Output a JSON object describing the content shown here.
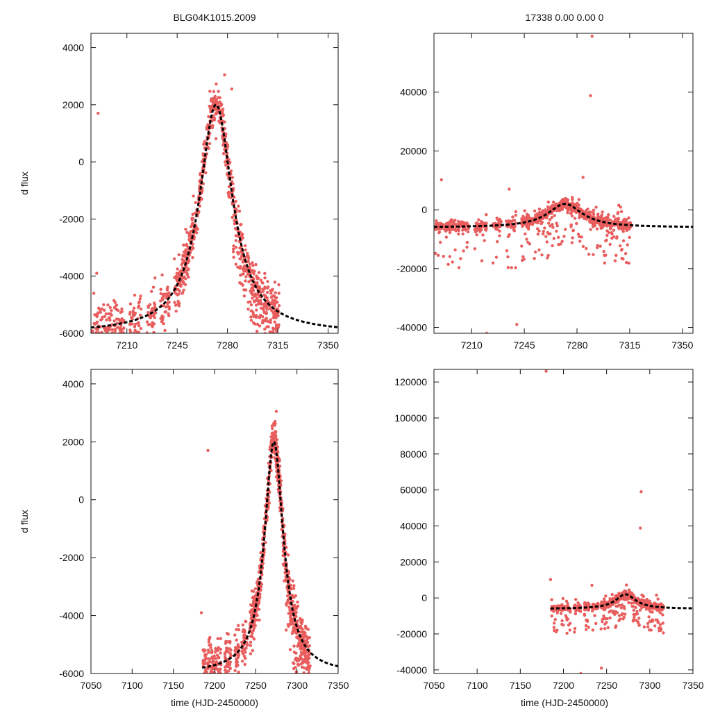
{
  "figure": {
    "title_left": "BLG04K1015.2009",
    "title_right": "17338  0.00  0.00  0",
    "xlabel": "time (HJD-2450000)",
    "ylabel": "d flux"
  },
  "colors": {
    "points": "#e85d5d",
    "model": "#000000",
    "axes": "#111111"
  },
  "model": {
    "t0": 7272,
    "peak": 2000,
    "base": -6000,
    "tE": 14
  },
  "chart_data": [
    {
      "id": "top-left",
      "type": "scatter",
      "xlim": [
        7185,
        7357
      ],
      "ylim": [
        -6000,
        4500
      ],
      "xticks": [
        7210,
        7245,
        7280,
        7315,
        7350
      ],
      "yticks": [
        -6000,
        -4000,
        -2000,
        0,
        2000,
        4000
      ],
      "series": [
        {
          "name": "data",
          "points": [
            [
              7190,
              1700
            ],
            [
              7278,
              3050
            ],
            [
              7283,
              2550
            ],
            [
              7189,
              -3900
            ],
            [
              7187,
              -4600
            ]
          ]
        },
        {
          "name": "model",
          "style": "dashed",
          "function": "paczynski"
        }
      ]
    },
    {
      "id": "top-right",
      "type": "scatter",
      "xlim": [
        7185,
        7357
      ],
      "ylim": [
        -42000,
        60000
      ],
      "xticks": [
        7210,
        7245,
        7280,
        7315,
        7350
      ],
      "yticks": [
        -40000,
        -20000,
        0,
        20000,
        40000
      ],
      "series": [
        {
          "name": "data",
          "points": [
            [
              7290,
              59000
            ],
            [
              7289,
              38800
            ],
            [
              7190,
              10200
            ],
            [
              7284,
              11000
            ],
            [
              7235,
              7000
            ],
            [
              7220,
              -42000
            ],
            [
              7240,
              -39000
            ]
          ]
        },
        {
          "name": "model",
          "style": "dashed",
          "function": "paczynski"
        }
      ]
    },
    {
      "id": "bottom-left",
      "type": "scatter",
      "xlim": [
        7050,
        7350
      ],
      "ylim": [
        -6000,
        4500
      ],
      "xticks": [
        7050,
        7100,
        7150,
        7200,
        7250,
        7300,
        7350
      ],
      "yticks": [
        -6000,
        -4000,
        -2000,
        0,
        2000,
        4000
      ],
      "series": [
        {
          "name": "data",
          "points": [
            [
              7192,
              1700
            ],
            [
              7275,
              3050
            ],
            [
              7184,
              -3900
            ]
          ]
        },
        {
          "name": "model",
          "style": "dashed",
          "function": "paczynski"
        }
      ]
    },
    {
      "id": "bottom-right",
      "type": "scatter",
      "xlim": [
        7050,
        7350
      ],
      "ylim": [
        -42000,
        127000
      ],
      "xticks": [
        7050,
        7100,
        7150,
        7200,
        7250,
        7300,
        7350
      ],
      "yticks": [
        -40000,
        -20000,
        0,
        20000,
        40000,
        60000,
        80000,
        100000,
        120000
      ],
      "series": [
        {
          "name": "data",
          "points": [
            [
              7180,
              126000
            ],
            [
              7290,
              59000
            ],
            [
              7289,
              38800
            ],
            [
              7185,
              10200
            ],
            [
              7233,
              7000
            ],
            [
              7220,
              -42000
            ],
            [
              7244,
              -39000
            ]
          ]
        },
        {
          "name": "model",
          "style": "dashed",
          "function": "paczynski"
        }
      ]
    }
  ]
}
